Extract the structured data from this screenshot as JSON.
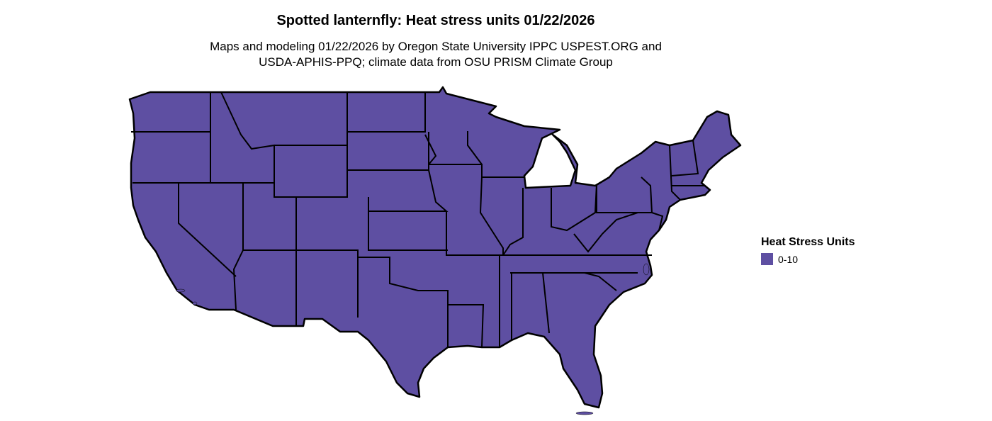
{
  "title": "Spotted lanternfly: Heat stress units 01/22/2026",
  "subtitle": [
    "Maps and modeling 01/22/2026 by Oregon State University IPPC USPEST.ORG and",
    "USDA-APHIS-PPQ; climate data from OSU PRISM Climate Group"
  ],
  "map": {
    "region": "Contiguous United States",
    "fill_color": "#5e4fa2",
    "border_color": "#000000"
  },
  "legend": {
    "title": "Heat Stress Units",
    "items": [
      {
        "label": "0-10",
        "color": "#5e4fa2"
      }
    ]
  }
}
